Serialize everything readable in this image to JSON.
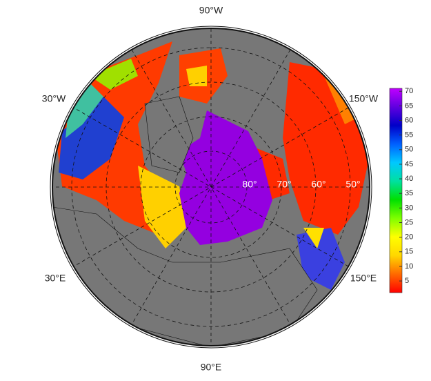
{
  "map": {
    "longitude_labels": [
      "90°W",
      "30°W",
      "150°W",
      "30°E",
      "150°E",
      "90°E"
    ],
    "latitude_labels": [
      "80°",
      "70°",
      "60°",
      "50°"
    ]
  },
  "colorbar": {
    "range": [
      1,
      71
    ],
    "ticks": [
      5,
      10,
      15,
      20,
      25,
      30,
      35,
      40,
      45,
      50,
      55,
      60,
      65,
      70
    ],
    "colors": [
      "#ff0000",
      "#ff6a00",
      "#ffd700",
      "#ffff00",
      "#7fff00",
      "#00e000",
      "#00e0a0",
      "#00c8ff",
      "#0060ff",
      "#0000c8",
      "#6000e0",
      "#c000ff"
    ]
  }
}
